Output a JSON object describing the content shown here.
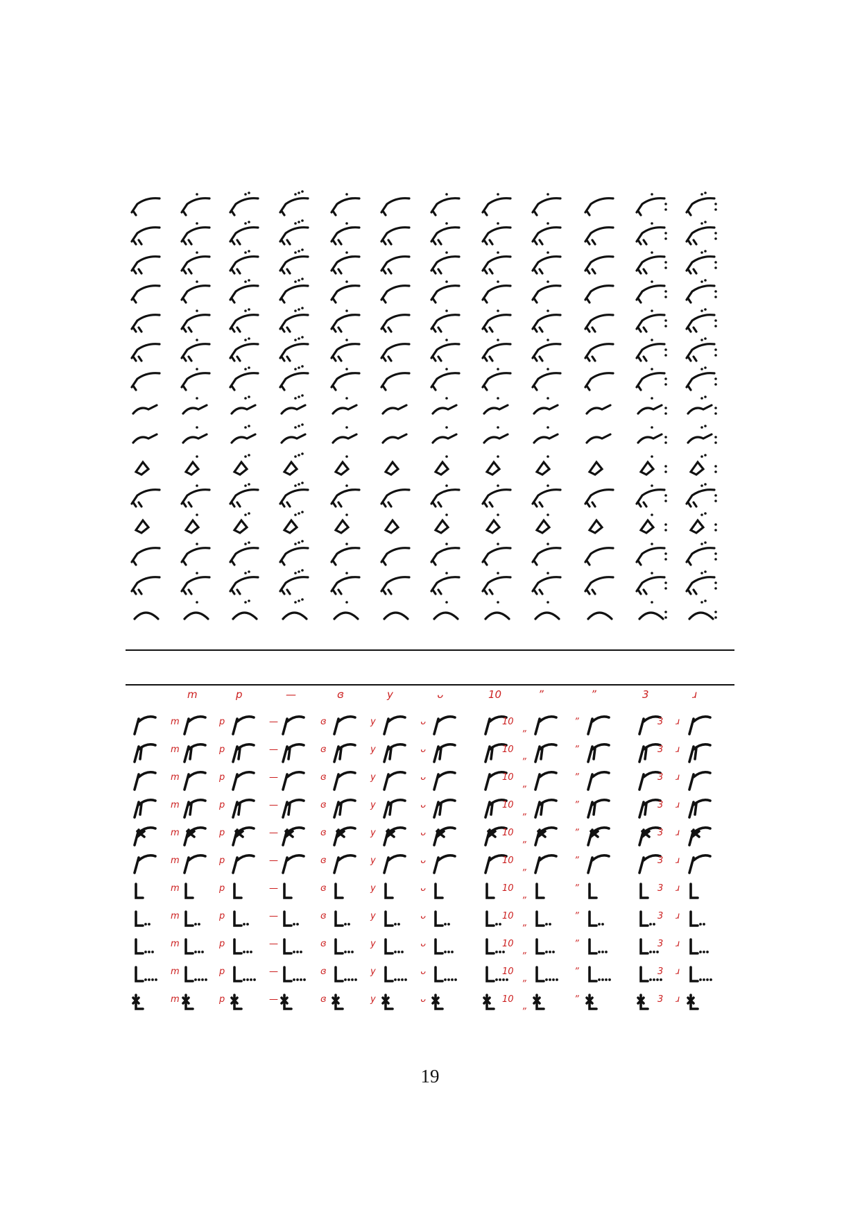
{
  "page": {
    "number": "19",
    "ink_color": "#111111",
    "annotation_color": "#cc1f1f"
  },
  "upper_table": {
    "rows": 15,
    "columns": 12,
    "description_cells": "neumatic/shorthand glyph forms (non-transcribable)"
  },
  "lower_table": {
    "rows": 11,
    "columns": 12,
    "header_marks": [
      "",
      "m",
      "p",
      "—",
      "ɞ",
      "y",
      "ᴗ",
      "10",
      "ˮ",
      "ˮ",
      "3",
      "ɹ"
    ],
    "annotation_marks": [
      "",
      "m",
      "p",
      "—",
      "ɞ",
      "y",
      "ᴗ",
      "10",
      "ˮ",
      "ˮ",
      "3",
      "ɹ"
    ]
  }
}
